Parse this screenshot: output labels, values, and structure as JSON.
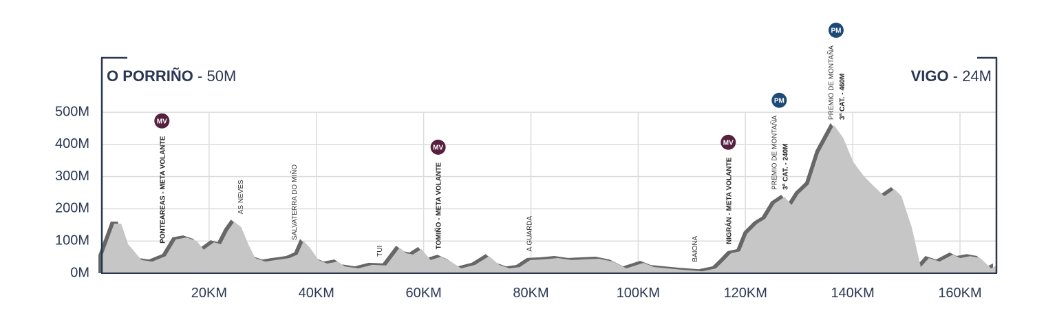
{
  "chart_data": {
    "type": "area",
    "start": {
      "name": "O PORRIÑO",
      "detail": "- 50M"
    },
    "finish": {
      "name": "VIGO",
      "detail": "- 24M"
    },
    "x": [
      0,
      2.3,
      3.6,
      4.9,
      7.4,
      9.4,
      11.9,
      13.8,
      15.8,
      17.7,
      19,
      20.9,
      22.2,
      23.5,
      24.7,
      26,
      27.3,
      28.6,
      30.5,
      32.4,
      35,
      36.5,
      37.6,
      38.8,
      40.4,
      42,
      44,
      45.3,
      47.8,
      50.4,
      53,
      55.5,
      56.8,
      58,
      59.6,
      61.3,
      63.2,
      65.1,
      67,
      69.6,
      72.2,
      74.1,
      76,
      77.9,
      79.9,
      82.4,
      85,
      87.6,
      90.1,
      92.7,
      95.3,
      97.8,
      101,
      103,
      105.5,
      108,
      112,
      114.5,
      115.8,
      117.3,
      119,
      120.3,
      122.2,
      123.7,
      125.4,
      127.3,
      128.6,
      129.9,
      131.8,
      133.7,
      136.5,
      138.2,
      140.1,
      142,
      143.9,
      145.9,
      147.8,
      149.1,
      151,
      152.7,
      154.2,
      156.2,
      158.7,
      160,
      161.9,
      163.8,
      165.8,
      166.8
    ],
    "values": [
      50,
      154,
      154,
      90,
      41,
      36,
      53,
      105,
      111,
      100,
      73,
      96,
      90,
      132,
      160,
      143,
      90,
      47,
      36,
      41,
      47,
      58,
      100,
      79,
      41,
      30,
      36,
      21,
      15,
      26,
      24,
      79,
      62,
      58,
      75,
      41,
      51,
      36,
      15,
      26,
      53,
      26,
      15,
      19,
      41,
      43,
      47,
      41,
      43,
      45,
      36,
      15,
      32,
      19,
      15,
      11,
      6,
      15,
      36,
      62,
      68,
      122,
      154,
      169,
      216,
      237,
      212,
      246,
      276,
      374,
      460,
      421,
      346,
      303,
      271,
      239,
      261,
      239,
      143,
      19,
      47,
      36,
      58,
      47,
      53,
      47,
      15,
      24
    ],
    "color": "#c6c6c6",
    "shadow_color": "#676767",
    "xlim": [
      0,
      166.8
    ],
    "xticks": [
      {
        "value": 20,
        "label": "20KM"
      },
      {
        "value": 40,
        "label": "40KM"
      },
      {
        "value": 60,
        "label": "60KM"
      },
      {
        "value": 80,
        "label": "80KM"
      },
      {
        "value": 100,
        "label": "100KM"
      },
      {
        "value": 120,
        "label": "120KM"
      },
      {
        "value": 140,
        "label": "140KM"
      },
      {
        "value": 160,
        "label": "160KM"
      }
    ],
    "ylim": [
      0,
      669
    ],
    "yticks": [
      {
        "value": 0,
        "label": "0M"
      },
      {
        "value": 100,
        "label": "100M"
      },
      {
        "value": 200,
        "label": "200M"
      },
      {
        "value": 300,
        "label": "300M"
      },
      {
        "value": 400,
        "label": "400M"
      },
      {
        "value": 500,
        "label": "500M"
      }
    ],
    "grid": true,
    "annotations": [
      {
        "x": 11.2,
        "lines": [
          "PONTEAREAS - META VOLANTE"
        ],
        "bold": true,
        "badge": "MV"
      },
      {
        "x": 25.8,
        "lines": [
          "AS NEVES"
        ]
      },
      {
        "x": 35.8,
        "lines": [
          "SALVATERRA DO MIÑO"
        ]
      },
      {
        "x": 51.7,
        "lines": [
          "TUI"
        ]
      },
      {
        "x": 62.7,
        "lines": [
          "TOMIÑO - META VOLANTE"
        ],
        "bold": true,
        "badge": "MV"
      },
      {
        "x": 79.6,
        "lines": [
          "A GUARDA"
        ]
      },
      {
        "x": 110.5,
        "lines": [
          "BAIONA"
        ]
      },
      {
        "x": 116.8,
        "lines": [
          "NIGRÁN - META VOLANTE"
        ],
        "bold": true,
        "badge": "MV"
      },
      {
        "x": 126.3,
        "lines": [
          "PREMIO DE MONTAÑA",
          "3ª CAT. - 240M"
        ],
        "badge": "PM"
      },
      {
        "x": 136.9,
        "lines": [
          "PREMIO DE MONTAÑA",
          "3ª CAT. - 460M"
        ],
        "badge": "PM"
      }
    ]
  }
}
